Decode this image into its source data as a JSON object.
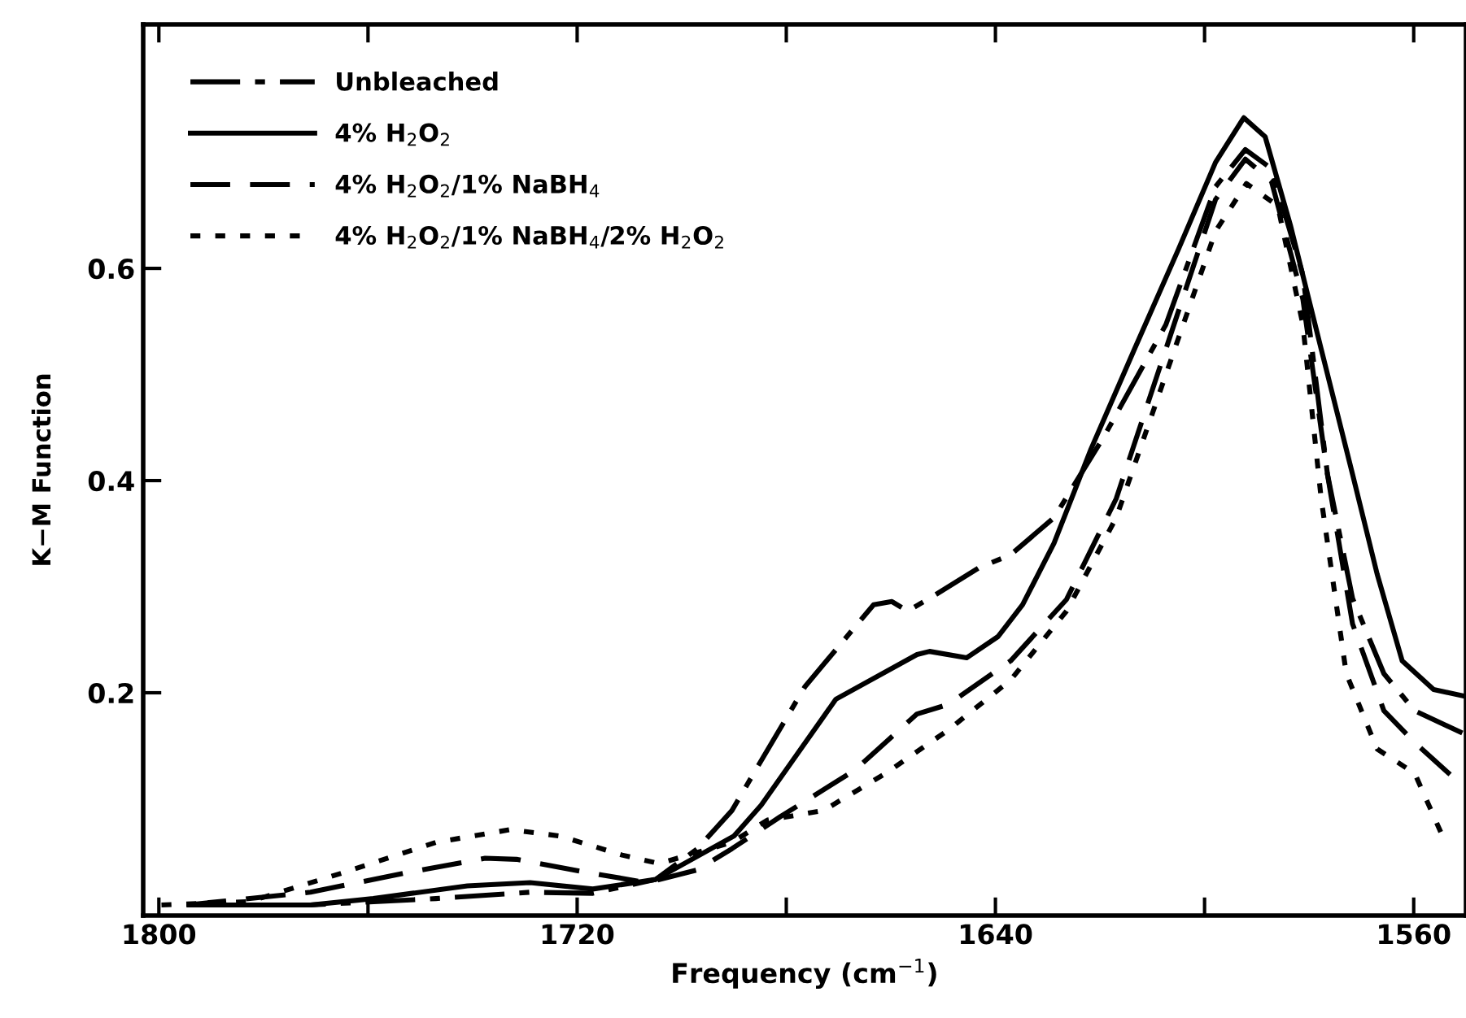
{
  "chart_data": {
    "type": "line",
    "xlabel": "Frequency (cm$^{−1}$)",
    "ylabel": "K−M Function",
    "xlim": [
      1803,
      1550
    ],
    "ylim": [
      -0.01,
      0.83
    ],
    "xticks": [
      1800,
      {
        "value": 1760,
        "label": null
      },
      1720,
      {
        "value": 1680,
        "label": null
      },
      1640,
      {
        "value": 1600,
        "label": null
      },
      1560
    ],
    "yticks": [
      0.2,
      0.4,
      0.6
    ],
    "grid": false,
    "legend": "top left",
    "marker": "none",
    "series": [
      {
        "name": "Unbleached",
        "color": "#000000",
        "line_style": "dashdot",
        "x": [
          1794.7,
          1771,
          1747,
          1729,
          1717,
          1705,
          1697,
          1690.4,
          1684.8,
          1676.4,
          1663.3,
          1659.8,
          1656.8,
          1652.6,
          1643.1,
          1637.1,
          1628.8,
          1619.3,
          1607.4,
          1597.9,
          1592.2,
          1587.2,
          1581.2,
          1576.5,
          1571.7,
          1565.7,
          1559.8,
          1550.7
        ],
        "values": [
          0.0,
          0.0,
          0.006,
          0.012,
          0.011,
          0.024,
          0.053,
          0.089,
          0.136,
          0.206,
          0.283,
          0.286,
          0.277,
          0.289,
          0.318,
          0.33,
          0.365,
          0.441,
          0.547,
          0.677,
          0.712,
          0.694,
          0.594,
          0.406,
          0.289,
          0.218,
          0.183,
          0.162
        ]
      },
      {
        "name": "4% H$_{2}$O$_{2}$",
        "color": "#000000",
        "line_style": "solid",
        "x": [
          1791,
          1771,
          1759,
          1741,
          1729,
          1717,
          1705,
          1690,
          1684.8,
          1678.8,
          1670.5,
          1655,
          1652.6,
          1645.5,
          1639.5,
          1634.8,
          1628.8,
          1621.7,
          1613.4,
          1605,
          1597.9,
          1592.5,
          1588.4,
          1583.6,
          1577.7,
          1571.7,
          1567,
          1562.2,
          1556.2,
          1550.5
        ],
        "values": [
          0.0,
          0.0,
          0.006,
          0.018,
          0.021,
          0.015,
          0.024,
          0.065,
          0.094,
          0.136,
          0.194,
          0.236,
          0.239,
          0.233,
          0.253,
          0.283,
          0.341,
          0.43,
          0.524,
          0.618,
          0.7,
          0.742,
          0.724,
          0.641,
          0.524,
          0.406,
          0.312,
          0.23,
          0.203,
          0.197
        ]
      },
      {
        "name": "4% H$_{2}$O$_{2}$/1% NaBH$_{4}$",
        "color": "#000000",
        "line_style": "dashed",
        "x": [
          1794.7,
          1771,
          1753,
          1737.6,
          1731.6,
          1717.4,
          1706.6,
          1697.1,
          1690.4,
          1681.2,
          1666.9,
          1655,
          1649,
          1637.1,
          1626.4,
          1616.9,
          1607.4,
          1597.9,
          1592.2,
          1587.2,
          1581.2,
          1576.5,
          1571.7,
          1565.7,
          1559.8,
          1552.6
        ],
        "values": [
          0.0,
          0.012,
          0.03,
          0.044,
          0.043,
          0.03,
          0.021,
          0.033,
          0.053,
          0.083,
          0.127,
          0.18,
          0.189,
          0.23,
          0.288,
          0.383,
          0.524,
          0.665,
          0.703,
          0.682,
          0.571,
          0.406,
          0.265,
          0.183,
          0.153,
          0.121
        ]
      },
      {
        "name": "4% H$_{2}$O$_{2}$/1% NaBH$_{4}$/2% H$_{2}$O$_{2}$",
        "color": "#000000",
        "line_style": "dotted",
        "x": [
          1799.5,
          1782.8,
          1765,
          1747,
          1732.8,
          1723.3,
          1711.4,
          1704.3,
          1690.4,
          1683.6,
          1672.9,
          1661,
          1649,
          1637.1,
          1626.4,
          1616.9,
          1607.4,
          1597.9,
          1592,
          1586,
          1581.2,
          1577.7,
          1572.9,
          1567,
          1559.8,
          1554.5
        ],
        "values": [
          0.0,
          0.003,
          0.03,
          0.059,
          0.071,
          0.065,
          0.047,
          0.039,
          0.059,
          0.08,
          0.089,
          0.124,
          0.165,
          0.212,
          0.277,
          0.365,
          0.5,
          0.635,
          0.68,
          0.659,
          0.547,
          0.383,
          0.218,
          0.147,
          0.124,
          0.065
        ]
      }
    ]
  }
}
